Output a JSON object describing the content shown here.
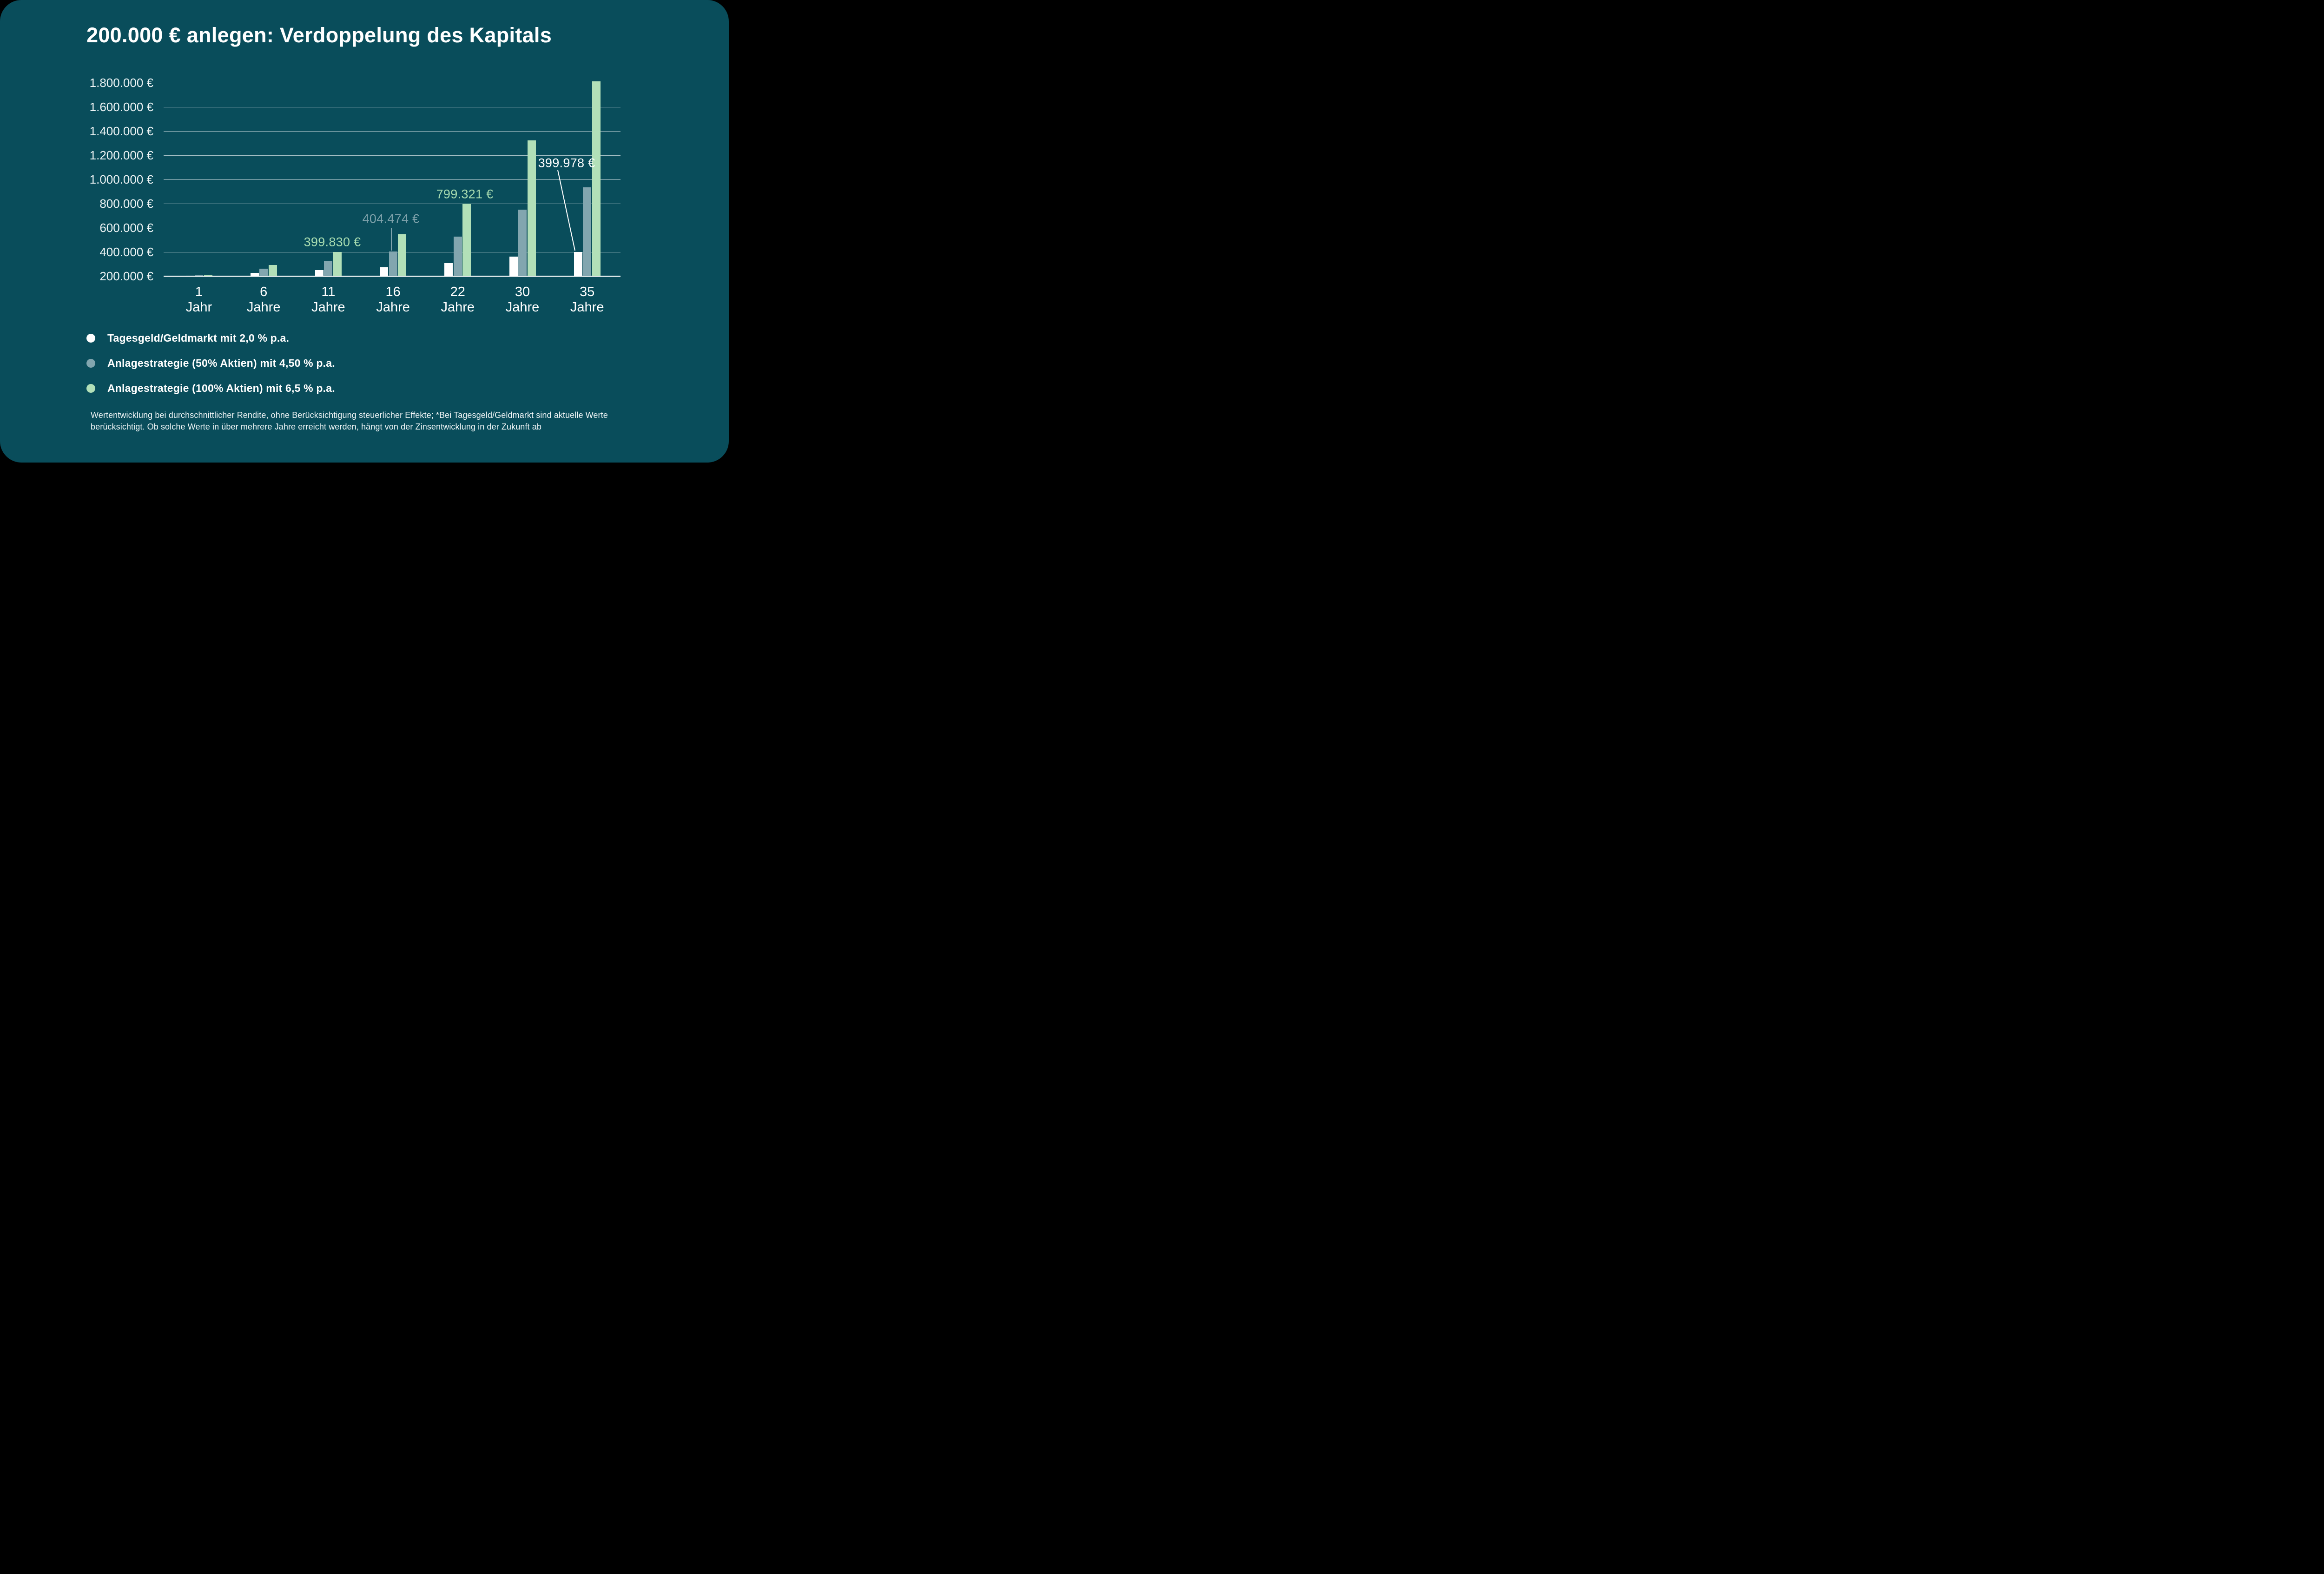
{
  "title": "200.000 € anlegen: Verdoppelung des Kapitals",
  "colors": {
    "background": "#094D5B",
    "outside": "#000000",
    "gridline": "#CBDADD",
    "axis_line": "#D8E3E5",
    "y_label_text": "#EDF4F5",
    "x_label_text": "#FFFFFF",
    "title_text": "#FFFFFF",
    "legend_text": "#FFFFFF",
    "footnote_text": "#F2F7F8",
    "series_white": "#FFFFFF",
    "series_gray": "#82A6AF",
    "series_green": "#B2E0B8",
    "annotation_green": "#A9DDB1",
    "annotation_gray": "#7FA2AB",
    "annotation_white": "#FFFFFF"
  },
  "chart_data": {
    "type": "bar",
    "title": "200.000 € anlegen: Verdoppelung des Kapitals",
    "categories": [
      "1 Jahr",
      "6 Jahre",
      "11 Jahre",
      "16 Jahre",
      "22 Jahre",
      "30 Jahre",
      "35 Jahre"
    ],
    "x_ticks": [
      {
        "value": "1",
        "unit": "Jahr"
      },
      {
        "value": "6",
        "unit": "Jahre"
      },
      {
        "value": "11",
        "unit": "Jahre"
      },
      {
        "value": "16",
        "unit": "Jahre"
      },
      {
        "value": "22",
        "unit": "Jahre"
      },
      {
        "value": "30",
        "unit": "Jahre"
      },
      {
        "value": "35",
        "unit": "Jahre"
      }
    ],
    "y_axis": {
      "min": 200000,
      "max": 1800000,
      "step": 200000,
      "tick_labels": [
        "1.800.000 €",
        "1.600.000 €",
        "1.400.000 €",
        "1.200.000 €",
        "1.000.000 €",
        "800.000 €",
        "600.000 €",
        "400.000 €",
        "200.000 €"
      ]
    },
    "baseline_value": 200000,
    "grid": true,
    "legend_position": "bottom-left",
    "series": [
      {
        "name": "Tagesgeld/Geldmarkt mit 2,0 % p.a.",
        "color": "#FFFFFF",
        "values": [
          204000,
          225232,
          248675,
          274557,
          309196,
          362272,
          399978
        ]
      },
      {
        "name": "Anlagestrategie (50% Aktien) mit 4,50 % p.a.",
        "color": "#82A6AF",
        "values": [
          209000,
          260453,
          324572,
          404474,
          526730,
          749065,
          933494
        ]
      },
      {
        "name": "Anlagestrategie (100% Aktien) mit 6,5 % p.a.",
        "color": "#B2E0B8",
        "values": [
          213000,
          291828,
          399830,
          547801,
          799321,
          1322892,
          1812477
        ]
      }
    ],
    "annotations": [
      {
        "text": "399.830 €",
        "color": "#A9DDB1",
        "series_index": 2,
        "category_index": 2
      },
      {
        "text": "404.474 €",
        "color": "#7FA2AB",
        "series_index": 1,
        "category_index": 3
      },
      {
        "text": "799.321 €",
        "color": "#A9DDB1",
        "series_index": 2,
        "category_index": 4
      },
      {
        "text": "399.978 €",
        "color": "#FFFFFF",
        "series_index": 0,
        "category_index": 6
      }
    ]
  },
  "footnote": {
    "lines": [
      "Wertentwicklung bei durchschnittlicher Rendite, ohne Berücksichtigung steuerlicher Effekte; *Bei Tagesgeld/Geldmarkt sind aktuelle Werte",
      "berücksichtigt. Ob solche Werte in über mehrere Jahre erreicht werden, hängt von der Zinsentwicklung in der Zukunft ab"
    ]
  }
}
